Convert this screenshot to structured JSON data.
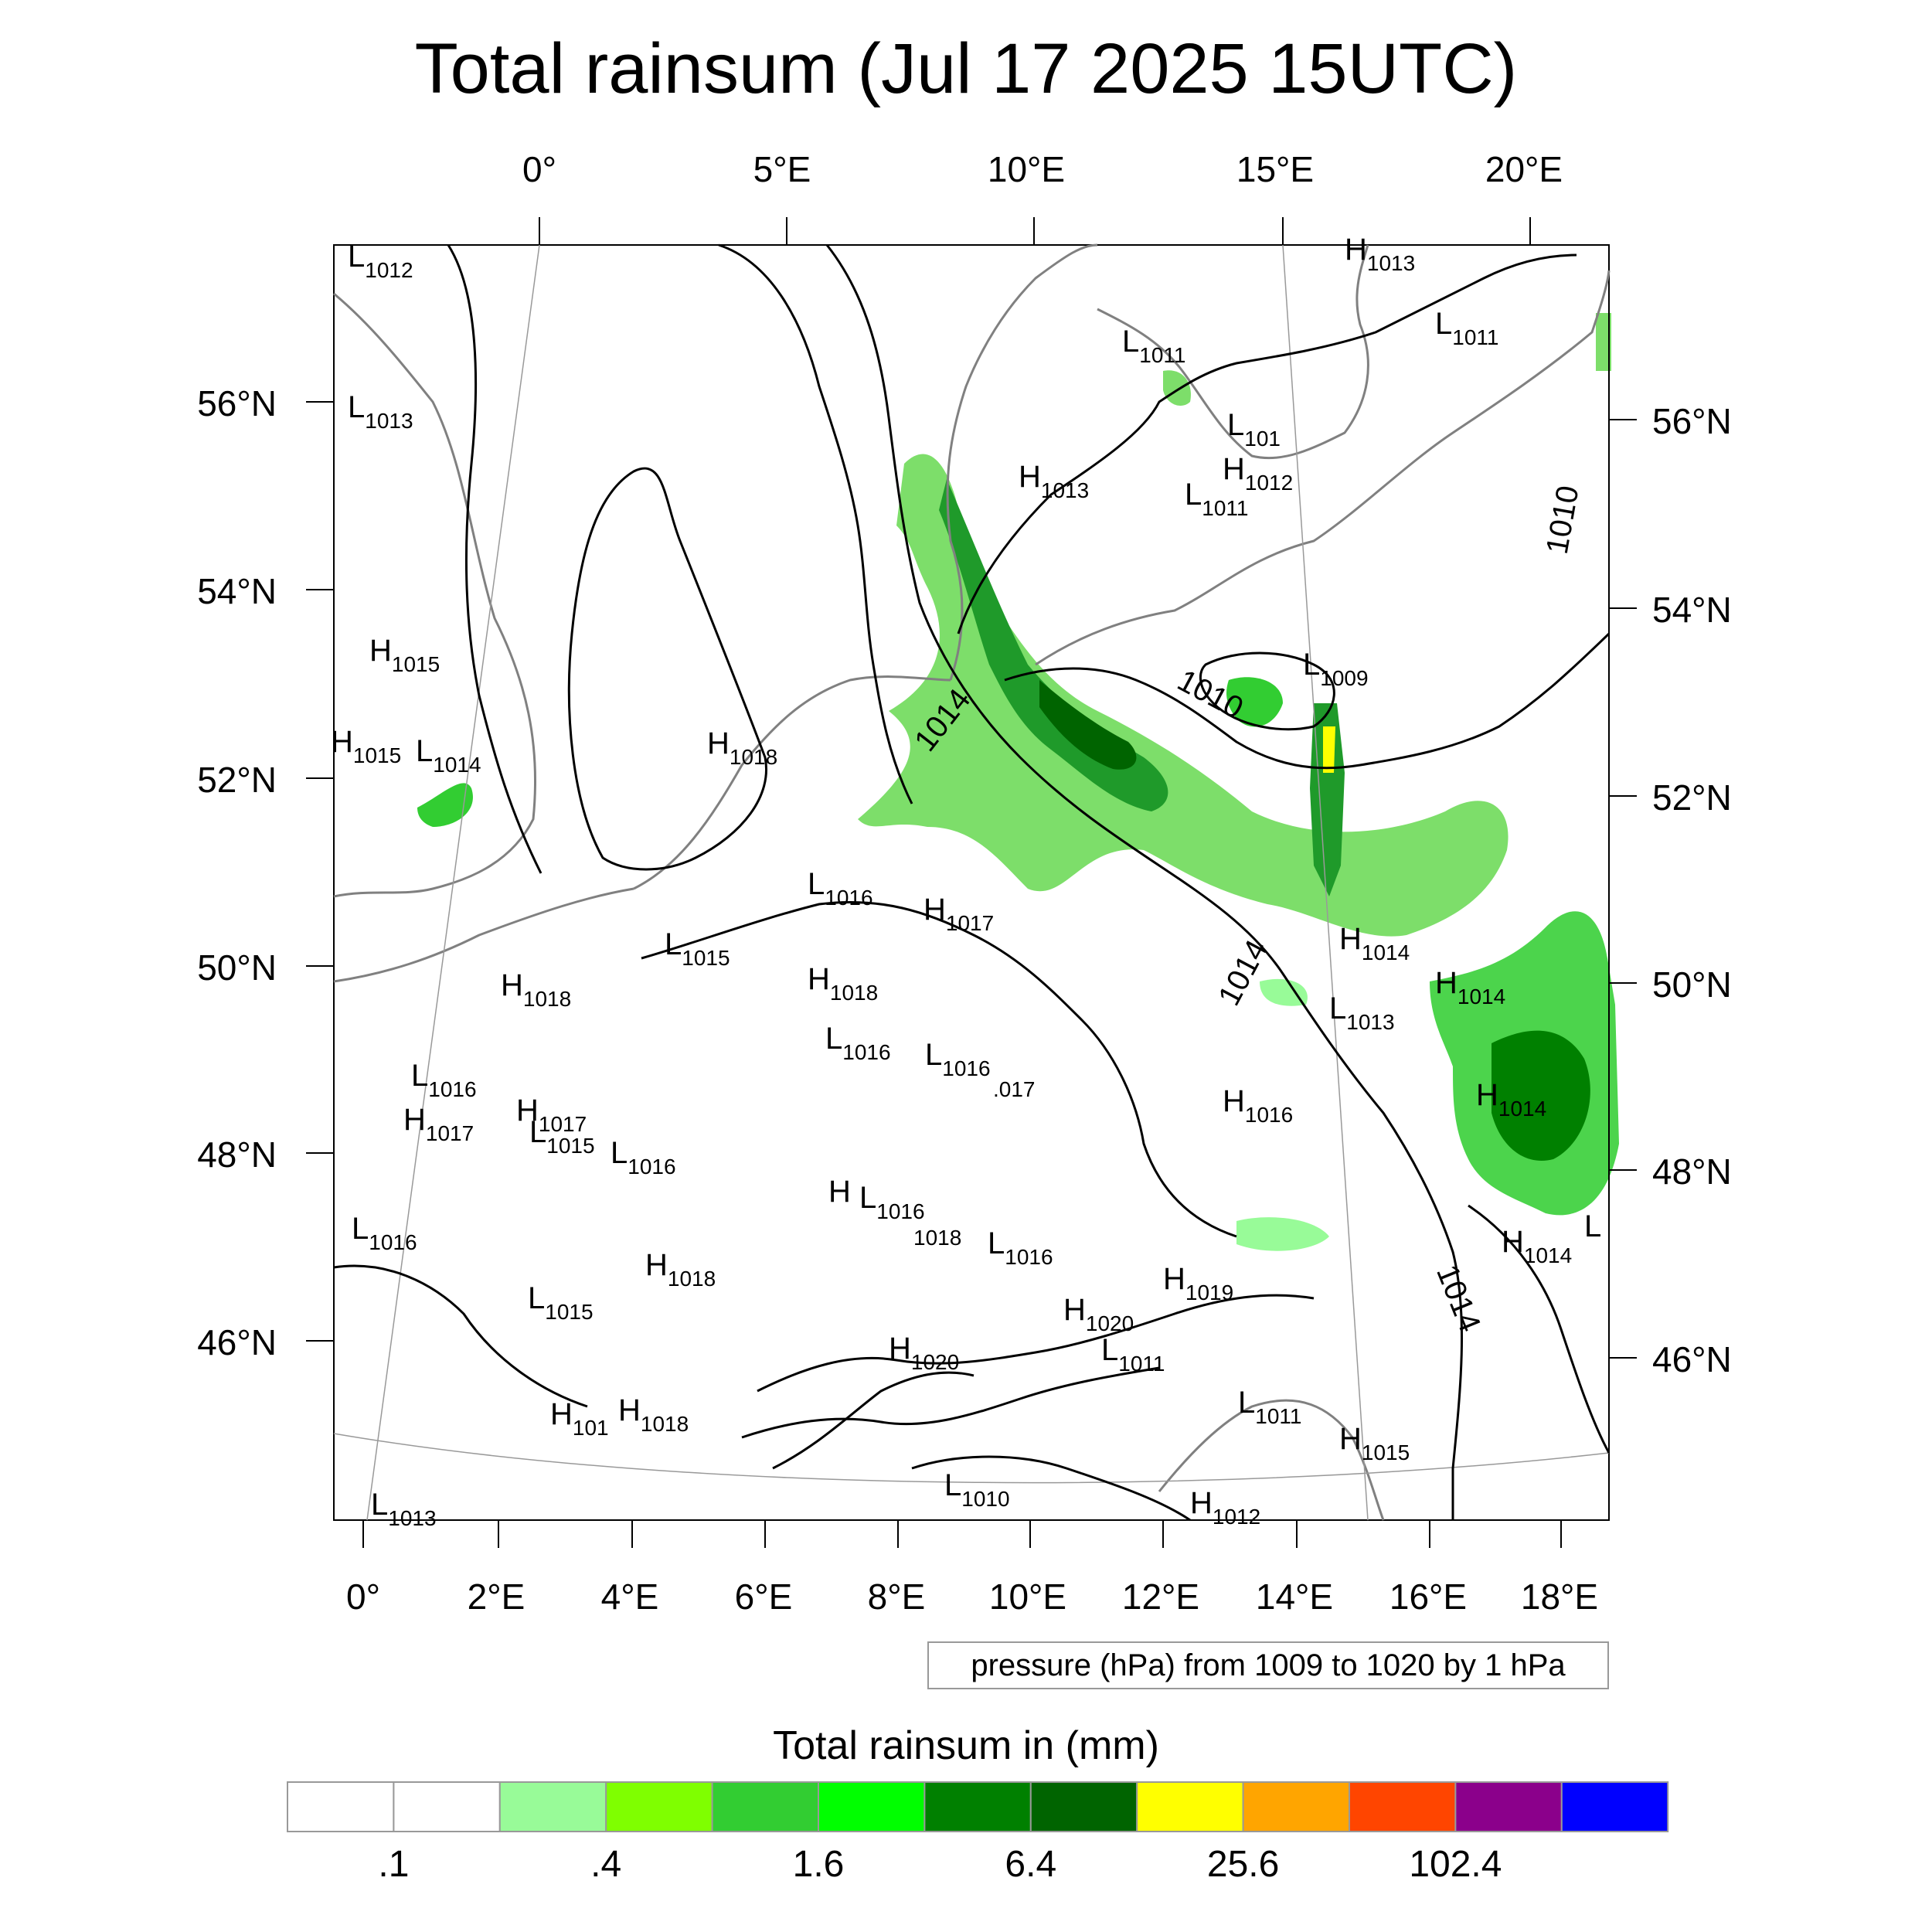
{
  "title": "Total rainsum (Jul 17 2025 15UTC)",
  "map": {
    "top_lon_labels": [
      "0°",
      "5°E",
      "10°E",
      "15°E",
      "20°E"
    ],
    "bottom_lon_labels": [
      "0°",
      "2°E",
      "4°E",
      "6°E",
      "8°E",
      "10°E",
      "12°E",
      "14°E",
      "16°E",
      "18°E"
    ],
    "left_lat_labels": [
      "56°N",
      "54°N",
      "52°N",
      "50°N",
      "48°N",
      "46°N"
    ],
    "right_lat_labels": [
      "56°N",
      "54°N",
      "52°N",
      "50°N",
      "48°N",
      "46°N"
    ],
    "isobar_labels": [
      "1014",
      "1010",
      "1014",
      "1014",
      "1010"
    ],
    "pressure_centers": [
      {
        "type": "L",
        "value": "1012"
      },
      {
        "type": "L",
        "value": "1013"
      },
      {
        "type": "H",
        "value": "1015"
      },
      {
        "type": "H",
        "value": "1015"
      },
      {
        "type": "L",
        "value": "1014"
      },
      {
        "type": "H",
        "value": "1018"
      },
      {
        "type": "H",
        "value": "1018"
      },
      {
        "type": "L",
        "value": "1016"
      },
      {
        "type": "H",
        "value": "1017"
      },
      {
        "type": "H",
        "value": "1017"
      },
      {
        "type": "L",
        "value": "1015"
      },
      {
        "type": "L",
        "value": "1016"
      },
      {
        "type": "L",
        "value": "1016"
      },
      {
        "type": "L",
        "value": "1015"
      },
      {
        "type": "H",
        "value": "1018"
      },
      {
        "type": "H",
        "value": "101"
      },
      {
        "type": "H",
        "value": "1018"
      },
      {
        "type": "L",
        "value": "1013"
      },
      {
        "type": "L",
        "value": "1016"
      },
      {
        "type": "H",
        "value": "1017"
      },
      {
        "type": "L",
        "value": "1015"
      },
      {
        "type": "H",
        "value": "1018"
      },
      {
        "type": "L",
        "value": "1016"
      },
      {
        "type": "L",
        "value": "1016"
      },
      {
        "type": "",
        "value": ".017"
      },
      {
        "type": "H",
        "value": ""
      },
      {
        "type": "L",
        "value": "1016"
      },
      {
        "type": "",
        "value": "1018"
      },
      {
        "type": "L",
        "value": "1016"
      },
      {
        "type": "H",
        "value": "1020"
      },
      {
        "type": "H",
        "value": "1020"
      },
      {
        "type": "H",
        "value": "1019"
      },
      {
        "type": "L",
        "value": "1011"
      },
      {
        "type": "L",
        "value": "1010"
      },
      {
        "type": "H",
        "value": "1013"
      },
      {
        "type": "H",
        "value": "1013"
      },
      {
        "type": "L",
        "value": "1011"
      },
      {
        "type": "L",
        "value": "1011"
      },
      {
        "type": "L",
        "value": "101"
      },
      {
        "type": "H",
        "value": "1012"
      },
      {
        "type": "L",
        "value": "1011"
      },
      {
        "type": "L",
        "value": "1009"
      },
      {
        "type": "H",
        "value": "1016"
      },
      {
        "type": "H",
        "value": "1014"
      },
      {
        "type": "L",
        "value": "1013"
      },
      {
        "type": "H",
        "value": "1014"
      },
      {
        "type": "H",
        "value": "1014"
      },
      {
        "type": "H",
        "value": "1014"
      },
      {
        "type": "L",
        "value": ""
      },
      {
        "type": "L",
        "value": "1011"
      },
      {
        "type": "H",
        "value": "1015"
      },
      {
        "type": "H",
        "value": "1012"
      }
    ],
    "pressure_note": "pressure (hPa) from 1009 to 1020 by 1 hPa"
  },
  "colorbar": {
    "title": "Total rainsum in (mm)",
    "colors": [
      "#ffffff",
      "#ffffff",
      "#98fb98",
      "#7fff00",
      "#32cd32",
      "#00ff00",
      "#008000",
      "#006400",
      "#ffff00",
      "#ffa500",
      "#ff4500",
      "#8b008b",
      "#0000ff"
    ],
    "tick_labels": [
      ".1",
      ".4",
      "1.6",
      "6.4",
      "25.6",
      "102.4"
    ]
  },
  "colors": {
    "isobar": "#000000",
    "coast": "#808080",
    "grid": "#999999"
  }
}
